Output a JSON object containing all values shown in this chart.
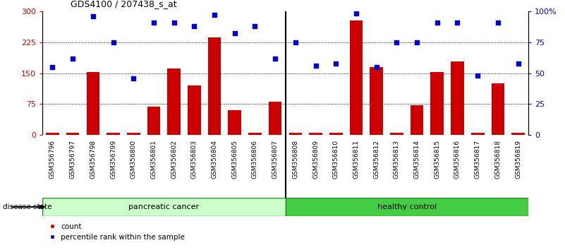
{
  "title": "GDS4100 / 207438_s_at",
  "samples": [
    "GSM356796",
    "GSM356797",
    "GSM356798",
    "GSM356799",
    "GSM356800",
    "GSM356801",
    "GSM356802",
    "GSM356803",
    "GSM356804",
    "GSM356805",
    "GSM356806",
    "GSM356807",
    "GSM356808",
    "GSM356809",
    "GSM356810",
    "GSM356811",
    "GSM356812",
    "GSM356813",
    "GSM356814",
    "GSM356815",
    "GSM356816",
    "GSM356817",
    "GSM356818",
    "GSM356819"
  ],
  "counts": [
    5,
    5,
    152,
    5,
    5,
    68,
    162,
    120,
    237,
    60,
    5,
    80,
    5,
    5,
    5,
    278,
    165,
    5,
    72,
    152,
    178,
    5,
    125,
    5
  ],
  "percentiles": [
    55,
    62,
    96,
    75,
    46,
    91,
    91,
    88,
    97,
    82,
    88,
    62,
    75,
    56,
    58,
    98,
    55,
    75,
    75,
    91,
    91,
    48,
    91,
    58
  ],
  "n_pancreatic": 12,
  "n_healthy": 12,
  "bar_color": "#cc0000",
  "dot_color": "#0000cc",
  "pancreatic_color_light": "#ccffcc",
  "pancreatic_color_dark": "#66dd66",
  "healthy_color": "#44cc44",
  "plot_bg_color": "#ffffff",
  "xtick_bg_color": "#cccccc",
  "ylim_left": [
    0,
    300
  ],
  "ylim_right": [
    0,
    100
  ],
  "yticks_left": [
    0,
    75,
    150,
    225,
    300
  ],
  "ytick_labels_left": [
    "0",
    "75",
    "150",
    "225",
    "300"
  ],
  "ytick_labels_right": [
    "0",
    "25",
    "50",
    "75",
    "100%"
  ],
  "gridline_y": [
    75,
    150,
    225
  ],
  "legend_red": "count",
  "legend_blue": "percentile rank within the sample",
  "disease_state_label": "disease state",
  "pancreatic_label": "pancreatic cancer",
  "healthy_label": "healthy control"
}
